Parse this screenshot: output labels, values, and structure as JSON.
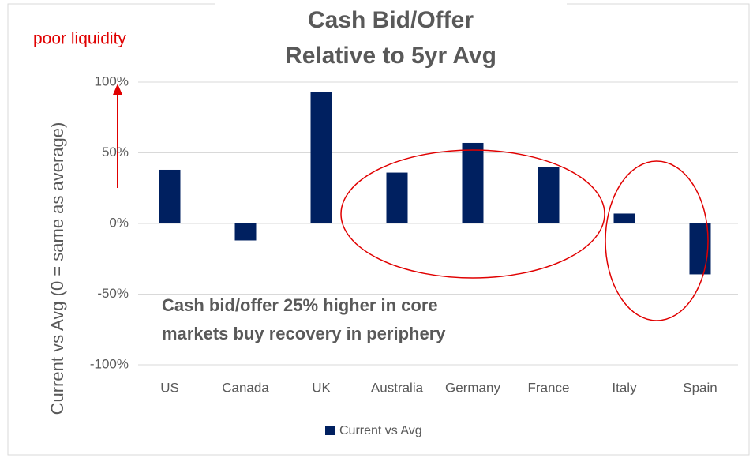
{
  "chart_data": {
    "type": "bar",
    "title": [
      "Cash Bid/Offer",
      "Relative to 5yr Avg"
    ],
    "y_axis_label": "Current vs Avg (0 = same as average)",
    "annotations": [
      "poor liquidity",
      "Cash bid/offer 25% higher in core",
      "markets buy recovery in periphery"
    ],
    "categories": [
      "US",
      "Canada",
      "UK",
      "Australia",
      "Germany",
      "France",
      "Italy",
      "Spain"
    ],
    "series": [
      {
        "name": "Current vs Avg",
        "color": "#002060",
        "values": [
          38,
          -12,
          93,
          36,
          57,
          40,
          7,
          -36
        ]
      }
    ],
    "ylim": [
      -100,
      100
    ],
    "yticks": [
      {
        "value": -100,
        "label": "-100%"
      },
      {
        "value": -50,
        "label": "-50%"
      },
      {
        "value": 0,
        "label": "0%"
      },
      {
        "value": 50,
        "label": "50%"
      },
      {
        "value": 100,
        "label": "100%"
      }
    ],
    "grid": true,
    "legend": "bottom"
  }
}
